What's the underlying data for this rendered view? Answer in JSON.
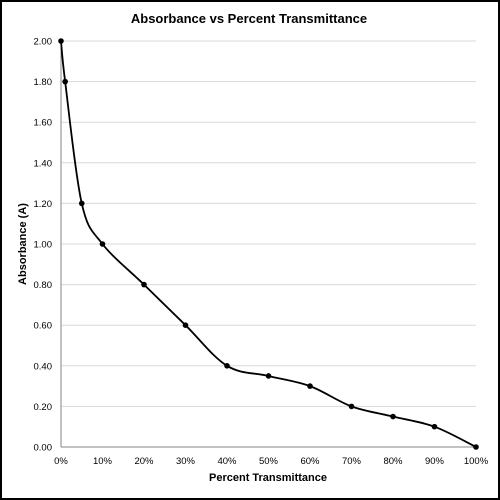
{
  "chart_data": {
    "type": "scatter",
    "title": "Absorbance vs Percent Transmittance",
    "xlabel": "Percent Transmittance",
    "ylabel": "Absorbance (A)",
    "x_ticks": [
      "0%",
      "10%",
      "20%",
      "30%",
      "40%",
      "50%",
      "60%",
      "70%",
      "80%",
      "90%",
      "100%"
    ],
    "y_ticks": [
      "0.00",
      "0.20",
      "0.40",
      "0.60",
      "0.80",
      "1.00",
      "1.20",
      "1.40",
      "1.60",
      "1.80",
      "2.00"
    ],
    "xlim": [
      0,
      100
    ],
    "ylim": [
      0,
      2
    ],
    "grid": "horizontal",
    "smooth_line": true,
    "markers": true,
    "series_color": "#000000",
    "x": [
      0,
      1,
      5,
      10,
      20,
      30,
      40,
      50,
      60,
      70,
      80,
      90,
      100
    ],
    "y": [
      2.0,
      1.8,
      1.2,
      1.0,
      0.8,
      0.6,
      0.4,
      0.35,
      0.3,
      0.2,
      0.15,
      0.1,
      0.0
    ]
  }
}
